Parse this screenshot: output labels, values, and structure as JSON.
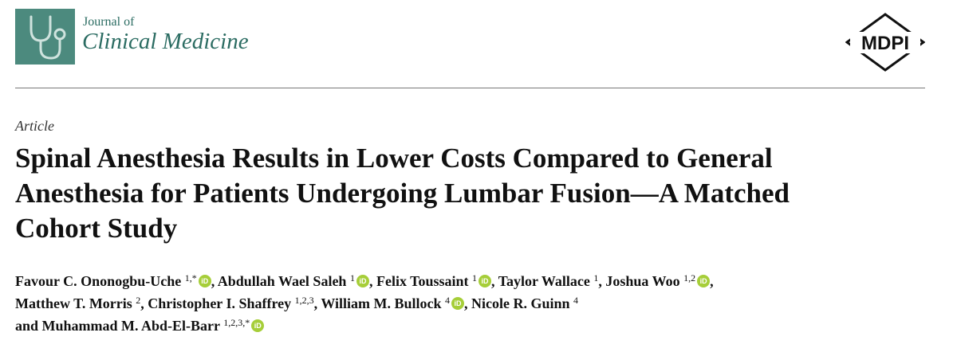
{
  "journal": {
    "line1": "Journal of",
    "line2": "Clinical Medicine",
    "publisher": "MDPI",
    "logo_icon": "stethoscope-icon",
    "brand_color": "#4c8a7e"
  },
  "article_type": "Article",
  "title_lines": [
    "Spinal Anesthesia Results in Lower Costs Compared to General",
    "Anesthesia for Patients Undergoing Lumbar Fusion—A Matched",
    "Cohort Study"
  ],
  "authors": [
    [
      {
        "name": "Favour C. Ononogbu-Uche",
        "aff": "1,*",
        "orcid": true,
        "sep": ", "
      },
      {
        "name": "Abdullah Wael Saleh",
        "aff": "1",
        "orcid": true,
        "sep": ", "
      },
      {
        "name": "Felix Toussaint",
        "aff": "1",
        "orcid": true,
        "sep": ", "
      },
      {
        "name": "Taylor Wallace",
        "aff": "1",
        "orcid": false,
        "sep": ", "
      },
      {
        "name": "Joshua Woo",
        "aff": "1,2",
        "orcid": true,
        "sep": ","
      }
    ],
    [
      {
        "name": "Matthew T. Morris",
        "aff": "2",
        "orcid": false,
        "sep": ", "
      },
      {
        "name": "Christopher I. Shaffrey",
        "aff": "1,2,3",
        "orcid": false,
        "sep": ", "
      },
      {
        "name": "William M. Bullock",
        "aff": "4",
        "orcid": true,
        "sep": ", "
      },
      {
        "name": "Nicole R. Guinn",
        "aff": "4",
        "orcid": false,
        "sep": ""
      }
    ],
    [
      {
        "name": "and Muhammad M. Abd-El-Barr",
        "aff": "1,2,3,*",
        "orcid": true,
        "sep": ""
      }
    ]
  ]
}
